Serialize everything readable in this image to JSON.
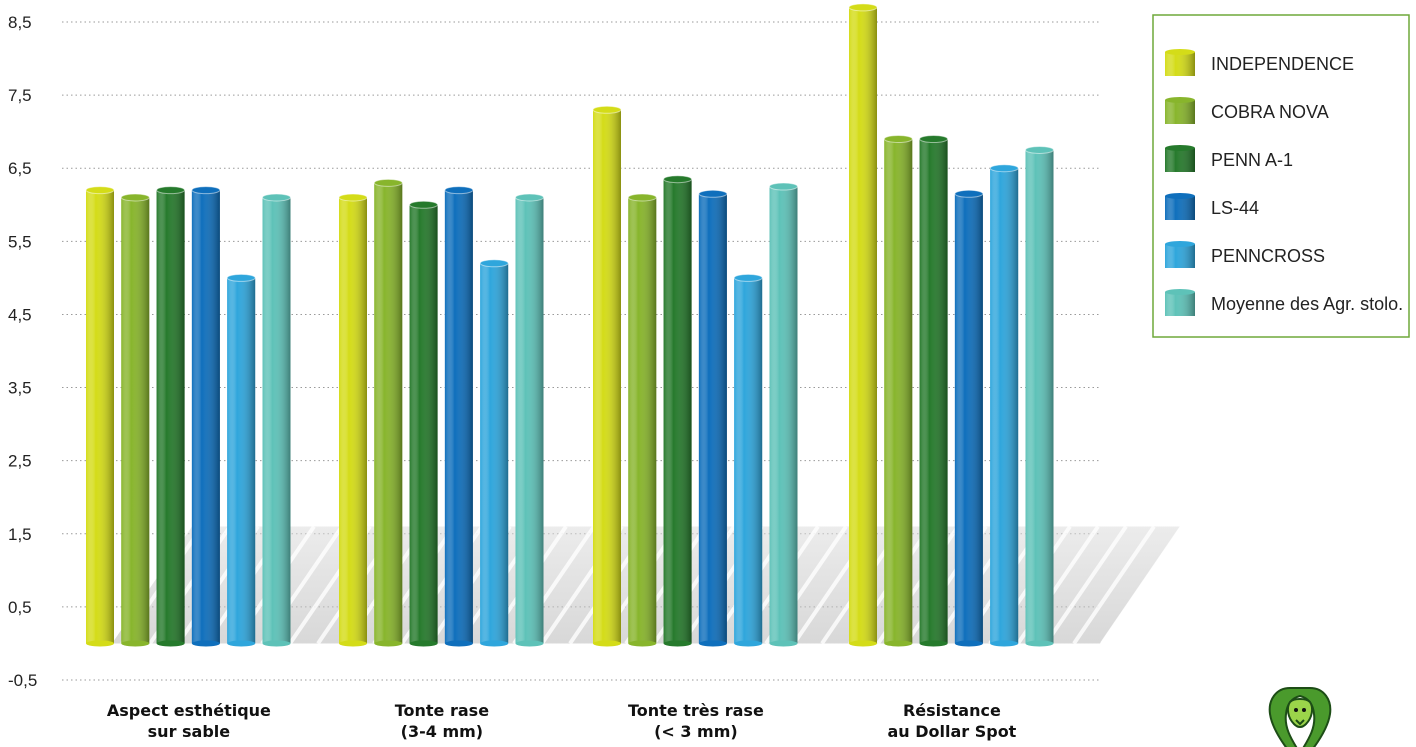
{
  "chart_data": {
    "type": "bar",
    "title": "",
    "xlabel": "",
    "ylabel": "",
    "ylim": [
      -0.5,
      8.5
    ],
    "yticks": [
      "8,5",
      "7,5",
      "6,5",
      "5,5",
      "4,5",
      "3,5",
      "2,5",
      "1,5",
      "0,5",
      "-0,5"
    ],
    "ytick_values": [
      8.5,
      7.5,
      6.5,
      5.5,
      4.5,
      3.5,
      2.5,
      1.5,
      0.5,
      -0.5
    ],
    "bar_base": 0,
    "grid": "dotted horizontal",
    "legend_position": "top-right",
    "categories": [
      [
        "Aspect esthétique",
        "sur sable"
      ],
      [
        "Tonte rase",
        "(3-4 mm)"
      ],
      [
        "Tonte très rase",
        "(< 3 mm)"
      ],
      [
        "Résistance",
        "au Dollar Spot"
      ]
    ],
    "series": [
      {
        "name": "INDEPENDENCE",
        "color": "#d4dc18",
        "values": [
          6.2,
          6.1,
          7.3,
          8.7
        ]
      },
      {
        "name": "COBRA NOVA",
        "color": "#88b52c",
        "values": [
          6.1,
          6.3,
          6.1,
          6.9
        ]
      },
      {
        "name": "PENN A-1",
        "color": "#267a2c",
        "values": [
          6.2,
          6.0,
          6.35,
          6.9
        ]
      },
      {
        "name": "LS-44",
        "color": "#0f6fbc",
        "values": [
          6.2,
          6.2,
          6.15,
          6.15
        ]
      },
      {
        "name": "PENNCROSS",
        "color": "#2fa6dc",
        "values": [
          5.0,
          5.2,
          5.0,
          6.5
        ]
      },
      {
        "name": "Moyenne des Agr. stolo.",
        "color": "#5ec2b8",
        "values": [
          6.1,
          6.1,
          6.25,
          6.75
        ]
      }
    ]
  },
  "logo": {
    "icon": "cobra-logo-icon"
  }
}
